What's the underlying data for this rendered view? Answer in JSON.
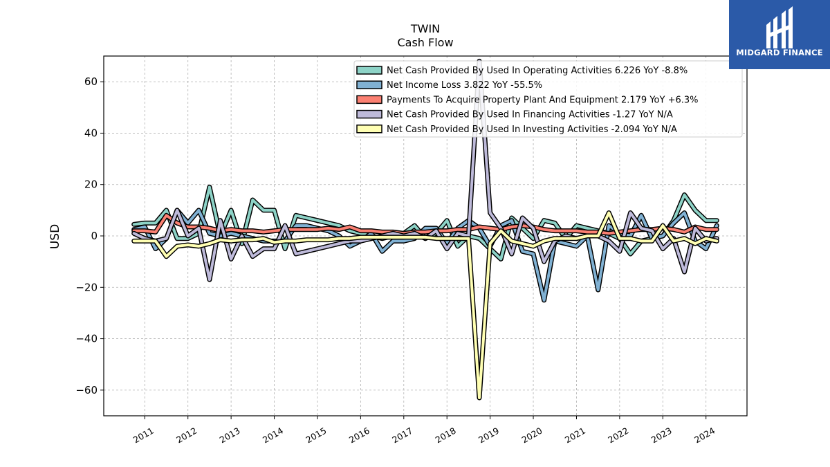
{
  "brand": {
    "name": "MIDGARD FINANCE",
    "color": "#2b5aa8"
  },
  "chart_data": {
    "type": "line",
    "title": "TWIN",
    "subtitle": "Cash Flow",
    "ylabel": "USD",
    "xlabel": "",
    "ylim": [
      -70,
      70
    ],
    "xlim": [
      2010.05,
      2024.95
    ],
    "yticks": [
      -60,
      -40,
      -20,
      0,
      20,
      40,
      60
    ],
    "ytick_labels": [
      "−60",
      "−40",
      "−20",
      "0",
      "20",
      "40",
      "60"
    ],
    "xticks": [
      2011,
      2012,
      2013,
      2014,
      2015,
      2016,
      2017,
      2018,
      2019,
      2020,
      2021,
      2022,
      2023,
      2024
    ],
    "grid": true,
    "legend_position": "top-right",
    "x": [
      2010.75,
      2011.0,
      2011.25,
      2011.5,
      2011.75,
      2012.0,
      2012.25,
      2012.5,
      2012.75,
      2013.0,
      2013.25,
      2013.5,
      2013.75,
      2014.0,
      2014.25,
      2014.5,
      2014.75,
      2015.0,
      2015.25,
      2015.5,
      2015.75,
      2016.0,
      2016.25,
      2016.5,
      2016.75,
      2017.0,
      2017.25,
      2017.5,
      2017.75,
      2018.0,
      2018.25,
      2018.5,
      2018.75,
      2019.0,
      2019.25,
      2019.5,
      2019.75,
      2020.0,
      2020.25,
      2020.5,
      2020.75,
      2021.0,
      2021.25,
      2021.5,
      2021.75,
      2022.0,
      2022.25,
      2022.5,
      2022.75,
      2023.0,
      2023.25,
      2023.5,
      2023.75,
      2024.0,
      2024.25
    ],
    "series": [
      {
        "name": "Net Cash Provided By Used In Operating Activities",
        "legend_label": "Net Cash Provided By Used In Operating Activities  6.226 YoY -8.8%",
        "color": "#8dd3c7",
        "values": [
          4.5,
          5,
          5,
          10,
          -1,
          -1,
          1,
          19,
          0,
          10,
          -3,
          14,
          10,
          10,
          -5,
          8,
          7,
          6,
          5,
          4,
          2,
          1,
          0,
          -1,
          0,
          1,
          4,
          -1,
          1,
          6,
          -4,
          0,
          -1,
          -5,
          -9,
          7,
          3,
          -1,
          6,
          5,
          -1,
          4,
          3,
          2,
          1,
          -1,
          -7,
          -2,
          -1,
          0,
          6,
          16,
          10,
          6,
          6
        ]
      },
      {
        "name": "Net Income Loss",
        "legend_label": "Net Income Loss  3.822 YoY -55.5%",
        "color": "#80b1d3",
        "values": [
          2.5,
          3.5,
          -5,
          -1,
          10,
          5,
          10,
          1,
          0,
          1,
          0,
          -1,
          -2,
          -2,
          -2,
          4,
          4,
          3,
          2,
          0,
          -4,
          -2,
          1,
          -6,
          -2,
          -2,
          -1,
          3,
          3,
          -3,
          3,
          6,
          3,
          -4,
          4,
          6,
          -6,
          -7,
          -25,
          -2,
          -3,
          -4,
          0,
          -21,
          4,
          1,
          0,
          8,
          -1,
          0,
          5,
          9,
          -2,
          -5,
          4
        ]
      },
      {
        "name": "Payments To Acquire Property Plant And Equipment",
        "legend_label": "Payments To Acquire Property Plant And Equipment  2.179 YoY +6.3%",
        "color": "#fb8072",
        "values": [
          2,
          2,
          1.5,
          8,
          5,
          3.5,
          3.5,
          3,
          2,
          2.5,
          2,
          2,
          1.5,
          2,
          2.5,
          2.5,
          2.5,
          2.5,
          3,
          2.5,
          3.5,
          2,
          2,
          1.5,
          1.5,
          1,
          1.5,
          1.5,
          2,
          2,
          2.5,
          2.5,
          3.5,
          3,
          2.5,
          3.5,
          4,
          3.5,
          2.5,
          2,
          2,
          2,
          1.5,
          1.5,
          1,
          1.5,
          2,
          2.5,
          2.5,
          3,
          2.5,
          1.5,
          3.5,
          2.5,
          2.5
        ]
      },
      {
        "name": "Net Cash Provided By Used In Financing Activities",
        "legend_label": "Net Cash Provided By Used In Financing Activities  -1.27 YoY N/A",
        "color": "#bebada",
        "values": [
          1,
          -1,
          -2,
          -1,
          10,
          0,
          3,
          -17,
          6,
          -9,
          0,
          -8,
          -5,
          -5,
          4,
          -7,
          -6,
          -5,
          -4,
          -3,
          -2,
          -2,
          -1,
          0,
          1,
          0,
          1,
          -1,
          2,
          -5,
          1,
          0,
          68,
          9,
          3,
          -7,
          7,
          3,
          -10,
          -2,
          0,
          -1,
          0,
          0,
          -2,
          -6,
          9,
          3,
          2,
          -5,
          -1,
          -14,
          3,
          -2,
          -1
        ]
      },
      {
        "name": "Net Cash Provided By Used In Investing Activities",
        "legend_label": "Net Cash Provided By Used In Investing Activities  -2.094 YoY N/A",
        "color": "#ffffb3",
        "values": [
          -2,
          -2,
          -2,
          -8,
          -4,
          -3.5,
          -4,
          -3,
          -1.5,
          -2,
          -1.5,
          -1.5,
          -1,
          -2.5,
          -2,
          -2,
          -1.5,
          -1.5,
          -1.5,
          -1,
          -1,
          -0.5,
          -0.5,
          -0.5,
          -0.5,
          -0.5,
          -0.5,
          -0.5,
          -1,
          -1,
          -1,
          -1,
          -63,
          -3,
          2,
          -2,
          -3,
          -4,
          -2,
          -1,
          -1,
          -1,
          0,
          0,
          9,
          -1,
          -1,
          -2,
          -2,
          4,
          -2,
          -1,
          -3,
          -1,
          -2
        ]
      }
    ]
  }
}
